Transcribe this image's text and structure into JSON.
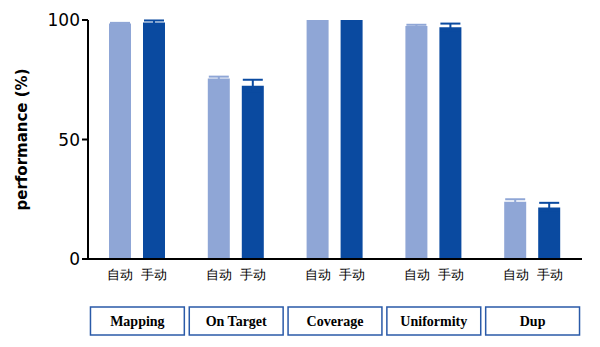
{
  "chart_data": {
    "type": "bar",
    "y_label": "performance (%)",
    "categories": [
      "Mapping",
      "On Target",
      "Coverage",
      "Uniformity",
      "Dup"
    ],
    "series": [
      {
        "name": "自动",
        "color": "#8fa6d6",
        "values": [
          98.5,
          75.5,
          100,
          97.5,
          24
        ],
        "errors": [
          0.3,
          0.8,
          0,
          0.5,
          1
        ]
      },
      {
        "name": "手动",
        "color": "#0a4aa0",
        "values": [
          99,
          72.5,
          100,
          97,
          21.5
        ],
        "errors": [
          0.8,
          2.5,
          0,
          1.5,
          2
        ]
      }
    ],
    "ylim": [
      0,
      100
    ],
    "yticks": [
      0,
      50,
      100
    ],
    "grid": false
  }
}
